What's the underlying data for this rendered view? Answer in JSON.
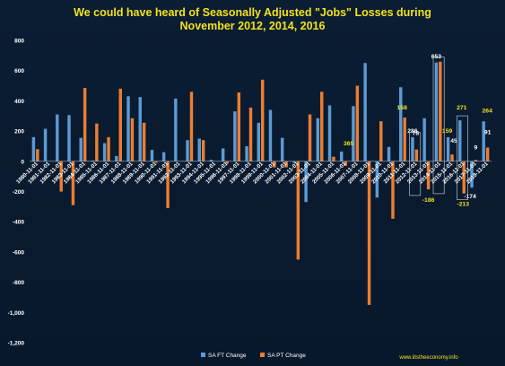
{
  "page": {
    "title_line1": "We could have heard of Seasonally Adjusted \"Jobs\" Losses during",
    "title_line2": "November 2012, 2014, 2016",
    "watermark": "www.iitstheeconomy.info"
  },
  "colors": {
    "background": "#0b1d33",
    "title": "#f2e21b",
    "axis_text": "#ffffff",
    "ft_bar": "#5b9bd5",
    "pt_bar": "#ed7d31",
    "annotation_yellow": "#f2e21b",
    "annotation_white": "#ffffff"
  },
  "chart_data": {
    "type": "bar",
    "title": "We could have heard of Seasonally Adjusted \"Jobs\" Losses during November 2012, 2014, 2016",
    "xlabel": "",
    "ylabel": "",
    "ylim": [
      -1200,
      800
    ],
    "yticks": [
      800,
      600,
      400,
      200,
      0,
      -200,
      -400,
      -600,
      -800,
      -1000,
      -1200
    ],
    "ytick_labels": [
      "800",
      "600",
      "400",
      "200",
      "0",
      "-200",
      "-400",
      "-600",
      "-800",
      "-1,000",
      "-1,200"
    ],
    "grid": false,
    "legend_position": "bottom-center",
    "categories": [
      "1980-11-01",
      "1981-11-01",
      "1982-11-01",
      "1983-11-01",
      "1984-11-01",
      "1985-11-01",
      "1986-11-01",
      "1987-11-01",
      "1988-11-01",
      "1989-11-01",
      "1990-11-01",
      "1991-11-01",
      "1992-11-01",
      "1993-11-01",
      "1994-11-01",
      "1995-11-01",
      "1996-11-01",
      "1997-11-01",
      "1998-11-01",
      "1999-11-01",
      "2000-11-01",
      "2001-11-01",
      "2002-11-01",
      "2003-11-01",
      "2004-11-01",
      "2005-11-01",
      "2006-11-01",
      "2007-11-01",
      "2008-11-01",
      "2009-11-01",
      "2010-11-01",
      "2011-11-01",
      "2012-11-01",
      "2013-11-01",
      "2014-11-01",
      "2015-11-01",
      "2016-11-01",
      "2017-11-01",
      "2018-11-01"
    ],
    "series": [
      {
        "name": "SA FT Change",
        "values": [
          160,
          215,
          310,
          305,
          155,
          5,
          120,
          35,
          430,
          425,
          75,
          60,
          415,
          140,
          150,
          10,
          85,
          330,
          100,
          255,
          340,
          155,
          -10,
          -270,
          285,
          370,
          65,
          365,
          650,
          -240,
          95,
          490,
          160,
          285,
          653,
          159,
          271,
          -174,
          264
        ]
      },
      {
        "name": "SA PT Change",
        "values": [
          80,
          0,
          -200,
          -290,
          485,
          250,
          160,
          480,
          285,
          255,
          -10,
          -310,
          0,
          460,
          140,
          0,
          -15,
          455,
          355,
          540,
          -40,
          -40,
          -650,
          310,
          460,
          30,
          -30,
          500,
          -950,
          265,
          -380,
          290,
          78,
          -186,
          659,
          45,
          -213,
          9,
          91
        ]
      }
    ],
    "annotations": [
      {
        "text": "365",
        "color": "yellow"
      },
      {
        "text": "286",
        "color": "white"
      },
      {
        "text": "158",
        "color": "yellow"
      },
      {
        "text": "78",
        "color": "white"
      },
      {
        "text": "-186",
        "color": "yellow"
      },
      {
        "text": "653",
        "color": "white"
      },
      {
        "text": "159",
        "color": "yellow"
      },
      {
        "text": "271",
        "color": "yellow"
      },
      {
        "text": "-174",
        "color": "white"
      },
      {
        "text": "45",
        "color": "white"
      },
      {
        "text": "9",
        "color": "white"
      },
      {
        "text": "-213",
        "color": "yellow"
      },
      {
        "text": "264",
        "color": "yellow"
      },
      {
        "text": "91",
        "color": "white"
      }
    ]
  }
}
